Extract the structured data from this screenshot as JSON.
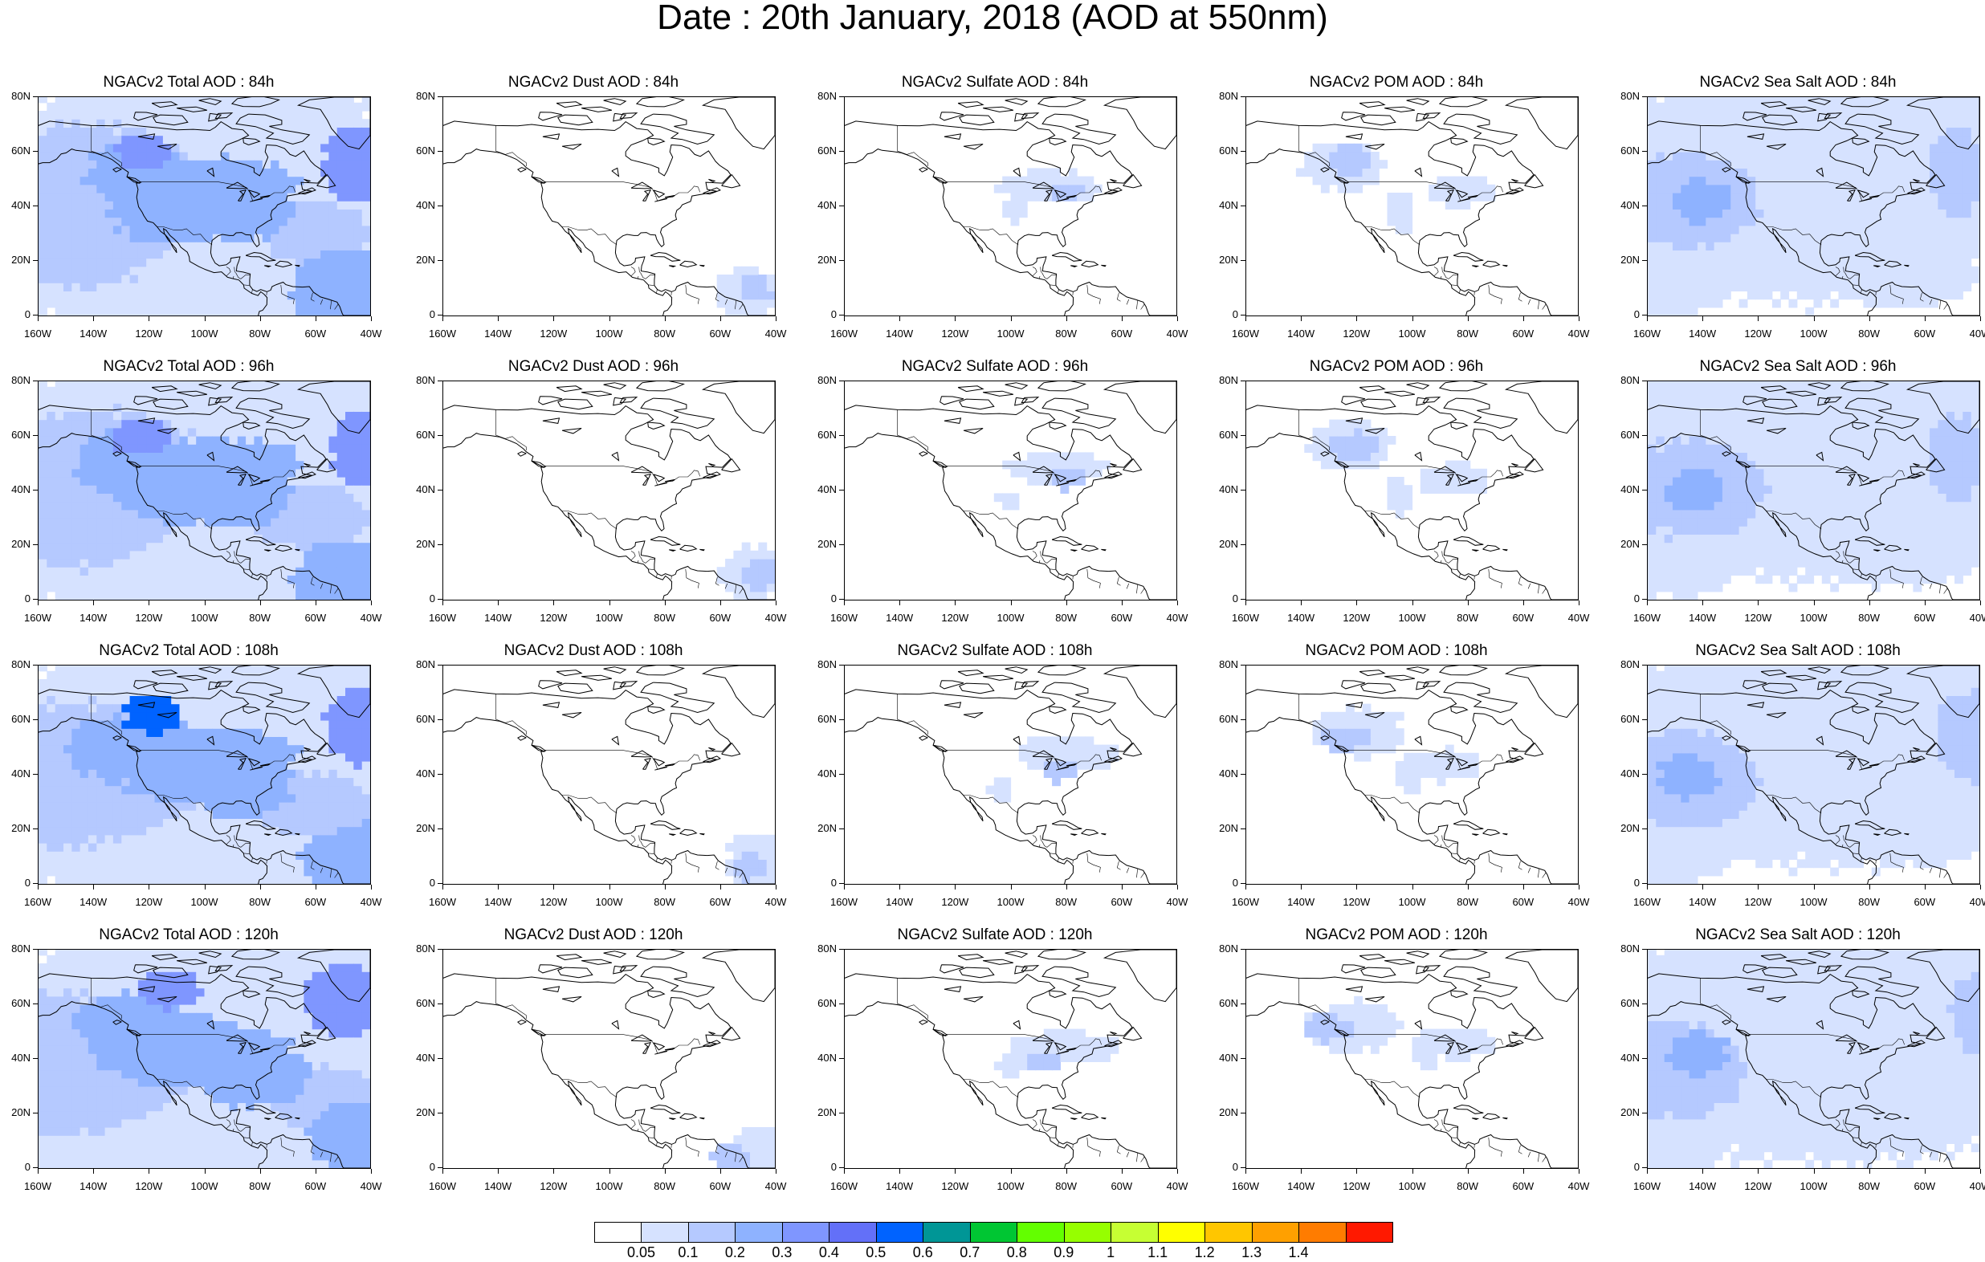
{
  "title": "Date : 20th January, 2018 (AOD at 550nm)",
  "axes": {
    "y_ticks": [
      "80N",
      "60N",
      "40N",
      "20N",
      "0"
    ],
    "x_ticks": [
      "160W",
      "140W",
      "120W",
      "100W",
      "80W",
      "60W",
      "40W"
    ]
  },
  "panels": [
    {
      "title": "NGACv2 Total AOD : 84h",
      "species": "total",
      "lead": 84
    },
    {
      "title": "NGACv2 Dust AOD : 84h",
      "species": "dust",
      "lead": 84
    },
    {
      "title": "NGACv2 Sulfate AOD : 84h",
      "species": "sulfate",
      "lead": 84
    },
    {
      "title": "NGACv2 POM AOD : 84h",
      "species": "pom",
      "lead": 84
    },
    {
      "title": "NGACv2 Sea Salt AOD : 84h",
      "species": "seasalt",
      "lead": 84
    },
    {
      "title": "NGACv2 Total AOD : 96h",
      "species": "total",
      "lead": 96
    },
    {
      "title": "NGACv2 Dust AOD : 96h",
      "species": "dust",
      "lead": 96
    },
    {
      "title": "NGACv2 Sulfate AOD : 96h",
      "species": "sulfate",
      "lead": 96
    },
    {
      "title": "NGACv2 POM AOD : 96h",
      "species": "pom",
      "lead": 96
    },
    {
      "title": "NGACv2 Sea Salt AOD : 96h",
      "species": "seasalt",
      "lead": 96
    },
    {
      "title": "NGACv2 Total AOD : 108h",
      "species": "total",
      "lead": 108
    },
    {
      "title": "NGACv2 Dust AOD : 108h",
      "species": "dust",
      "lead": 108
    },
    {
      "title": "NGACv2 Sulfate AOD : 108h",
      "species": "sulfate",
      "lead": 108
    },
    {
      "title": "NGACv2 POM AOD : 108h",
      "species": "pom",
      "lead": 108
    },
    {
      "title": "NGACv2 Sea Salt AOD : 108h",
      "species": "seasalt",
      "lead": 108
    },
    {
      "title": "NGACv2 Total AOD : 120h",
      "species": "total",
      "lead": 120
    },
    {
      "title": "NGACv2 Dust AOD : 120h",
      "species": "dust",
      "lead": 120
    },
    {
      "title": "NGACv2 Sulfate AOD : 120h",
      "species": "sulfate",
      "lead": 120
    },
    {
      "title": "NGACv2 POM AOD : 120h",
      "species": "pom",
      "lead": 120
    },
    {
      "title": "NGACv2 Sea Salt  AOD : 120h",
      "species": "seasalt",
      "lead": 120
    }
  ],
  "colorbar": {
    "colors": [
      "#ffffff",
      "#d6e2ff",
      "#b5c9ff",
      "#8eb2ff",
      "#7f96ff",
      "#6370f8",
      "#0063ff",
      "#009696",
      "#00c633",
      "#63ff00",
      "#96ff00",
      "#c6ff33",
      "#ffff00",
      "#ffc600",
      "#ffa000",
      "#ff7c00",
      "#ff1900"
    ],
    "labels": [
      "0.05",
      "0.1",
      "0.2",
      "0.3",
      "0.4",
      "0.5",
      "0.6",
      "0.7",
      "0.8",
      "0.9",
      "1",
      "1.1",
      "1.2",
      "1.3",
      "1.4"
    ]
  }
}
